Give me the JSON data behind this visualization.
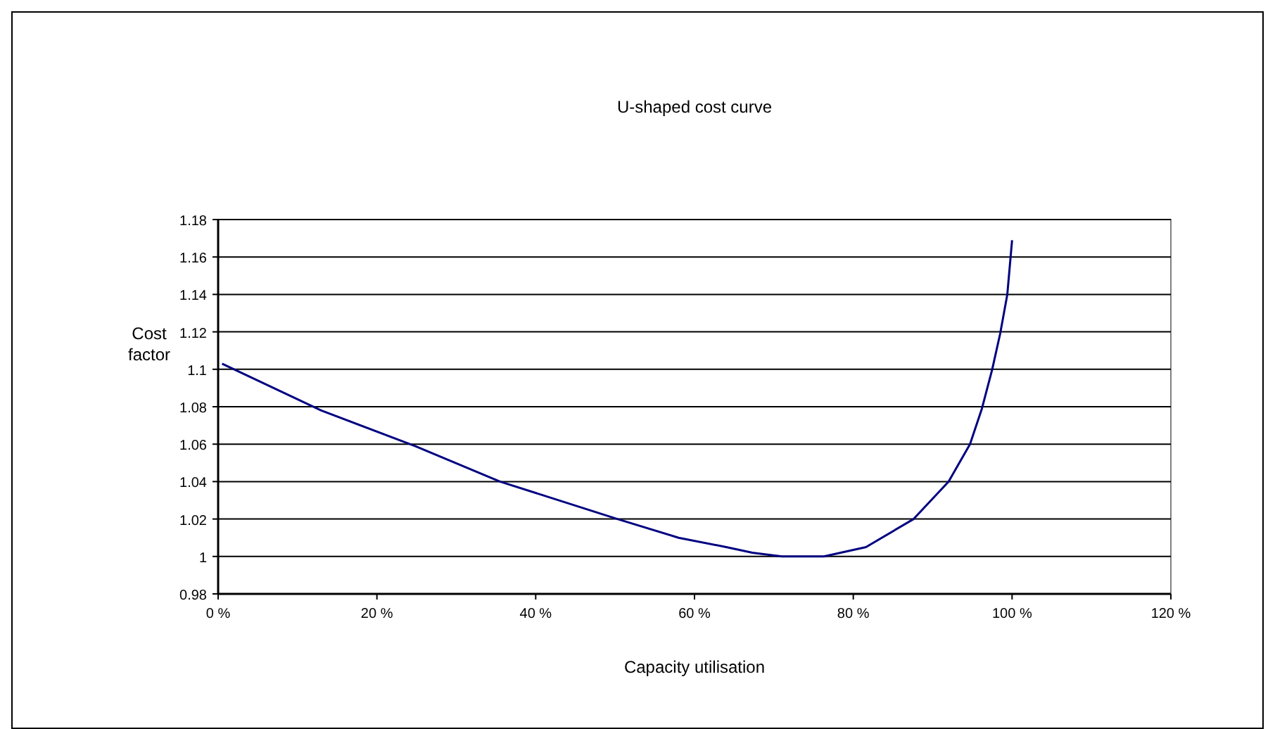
{
  "chart_data": {
    "type": "line",
    "title": "U-shaped cost curve",
    "xlabel": "Capacity utilisation",
    "ylabel": "Cost factor",
    "x": [
      0.5,
      13,
      24.8,
      35.5,
      50.3,
      58,
      64,
      67.3,
      71,
      76.3,
      81.6,
      87.6,
      92,
      94.7,
      96.2,
      97.5,
      98.5,
      99.4,
      100
    ],
    "series": [
      {
        "color": "#000080",
        "values": [
          1.103,
          1.078,
          1.059,
          1.04,
          1.02,
          1.01,
          1.005,
          1.002,
          1.0,
          1.0,
          1.005,
          1.02,
          1.04,
          1.06,
          1.079,
          1.1,
          1.119,
          1.14,
          1.169
        ]
      }
    ],
    "xlim": [
      0,
      120
    ],
    "xticks": [
      {
        "value": 0,
        "label": "0 %"
      },
      {
        "value": 20,
        "label": "20 %"
      },
      {
        "value": 40,
        "label": "40 %"
      },
      {
        "value": 60,
        "label": "60 %"
      },
      {
        "value": 80,
        "label": "80 %"
      },
      {
        "value": 100,
        "label": "100 %"
      },
      {
        "value": 120,
        "label": "120 %"
      }
    ],
    "ylim": [
      0.98,
      1.18
    ],
    "yticks": [
      0.98,
      1,
      1.02,
      1.04,
      1.06,
      1.08,
      1.1,
      1.12,
      1.14,
      1.16,
      1.18
    ],
    "grid": "y",
    "marker": "none",
    "line_style": "solid"
  }
}
